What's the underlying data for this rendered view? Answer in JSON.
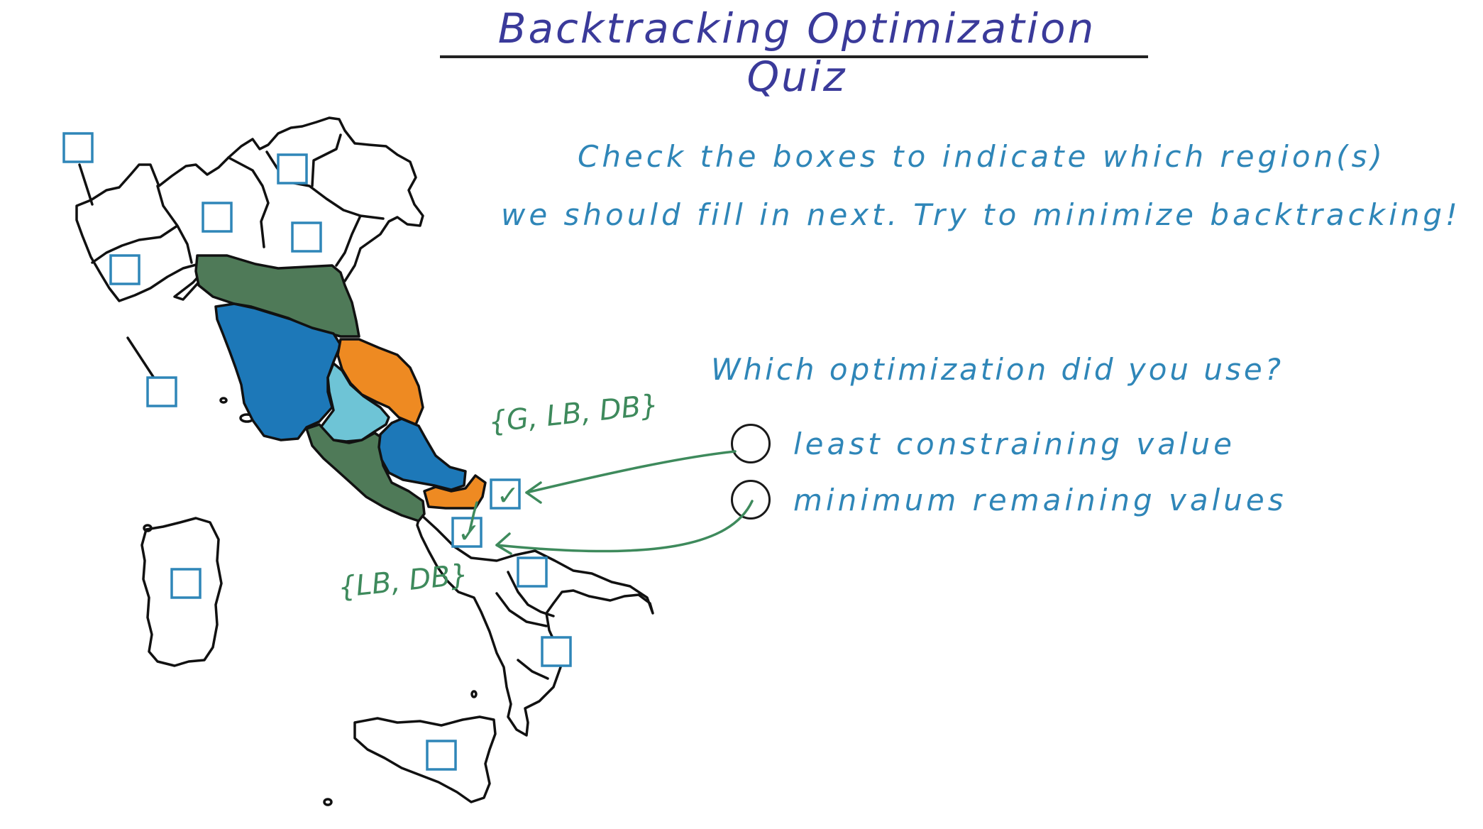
{
  "title": "Backtracking Optimization Quiz",
  "instructions": {
    "line1": "Check the boxes to indicate which region(s)",
    "line2": "we should fill in next. Try to minimize backtracking!"
  },
  "question": "Which optimization did you use?",
  "options": [
    {
      "label": "least constraining value",
      "selected": false
    },
    {
      "label": "minimum remaining values",
      "selected": false
    }
  ],
  "annotations": {
    "upper_domain": "{G, LB, DB}",
    "lower_domain": "{LB, DB}"
  },
  "checkboxes": {
    "checked_mark": "✓",
    "checked_count": 2
  },
  "colors": {
    "title": "#3a3a9a",
    "text": "#2f86b8",
    "annotation": "#3e8a5c",
    "checkbox": "#2f86b8",
    "region_green": "#4f7a58",
    "region_blue": "#1d78b8",
    "region_lightblue": "#6ec4d6",
    "region_orange": "#ee8a22"
  }
}
